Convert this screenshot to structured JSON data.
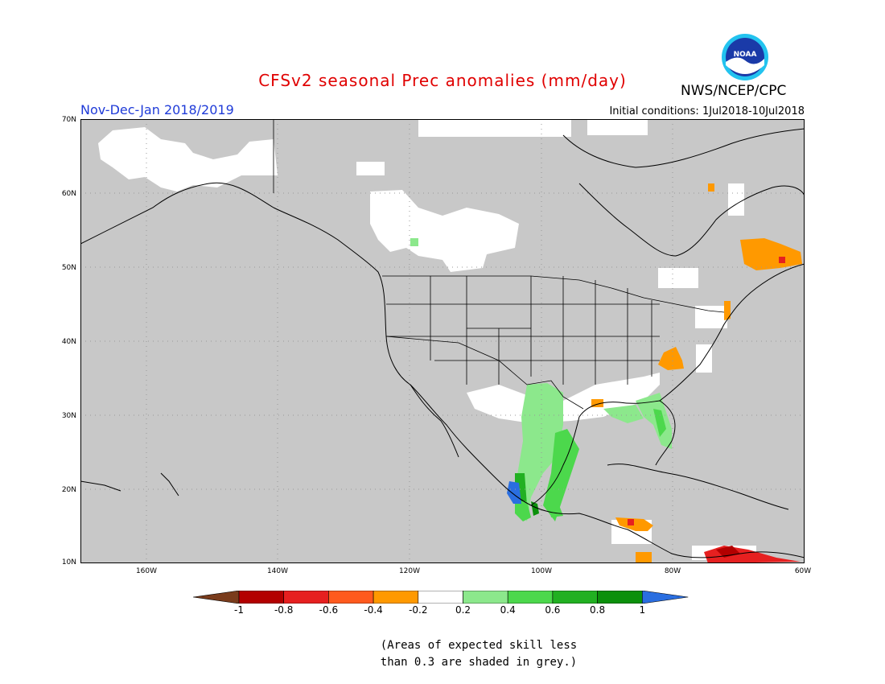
{
  "header": {
    "title": "CFSv2 seasonal Prec anomalies (mm/day)",
    "season": "Nov-Dec-Jan 2018/2019",
    "initial_conditions": "Initial conditions: 1Jul2018-10Jul2018",
    "agency": "NWS/NCEP/CPC",
    "logo_text": "NOAA"
  },
  "map": {
    "region": "North America",
    "lat_range": [
      10,
      70
    ],
    "lon_range": [
      -170,
      -60
    ],
    "lat_labels": [
      "70N",
      "60N",
      "50N",
      "40N",
      "30N",
      "20N",
      "10N"
    ],
    "lon_labels": [
      "160W",
      "140W",
      "120W",
      "100W",
      "80W",
      "60W"
    ],
    "grey_fill_color": "#c8c8c8"
  },
  "colorbar": {
    "ticks": [
      "-1",
      "-0.8",
      "-0.6",
      "-0.4",
      "-0.2",
      "0.2",
      "0.4",
      "0.6",
      "0.8",
      "1"
    ],
    "colors": [
      "#7a3c1c",
      "#b30000",
      "#e62020",
      "#ff5a1e",
      "#ff9900",
      "#ffffff",
      "#8ce88c",
      "#4cd84c",
      "#22b022",
      "#0b900b",
      "#2a6ee0"
    ]
  },
  "footnote": {
    "line1": "(Areas of expected skill less",
    "line2": "than 0.3 are shaded in grey.)"
  }
}
